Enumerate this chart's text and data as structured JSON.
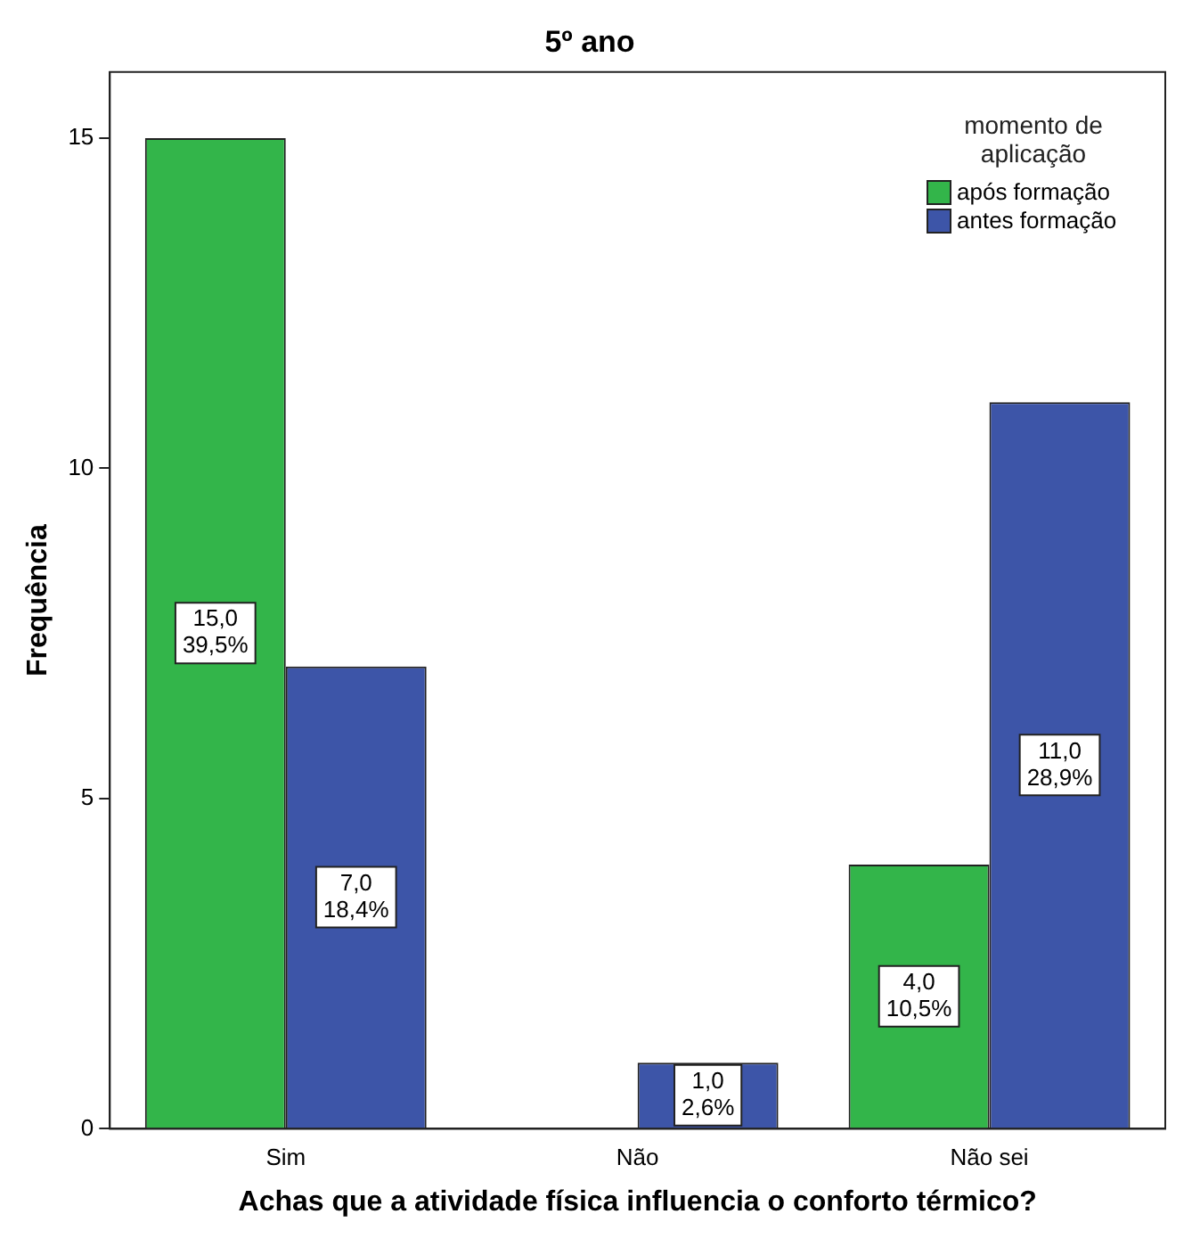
{
  "chart_data": {
    "type": "bar",
    "title": "5º ano",
    "xlabel": "Achas que a atividade física influencia o conforto térmico?",
    "ylabel": "Frequência",
    "legend_title": "momento de aplicação",
    "categories": [
      "Sim",
      "Não",
      "Não sei"
    ],
    "series": [
      {
        "name": "após formação",
        "color": "#33b54a",
        "values": [
          15,
          null,
          4
        ],
        "value_labels": [
          "15,0\n39,5%",
          null,
          "4,0\n10,5%"
        ]
      },
      {
        "name": "antes formação",
        "color": "#3d55a8",
        "values": [
          7,
          1,
          11
        ],
        "value_labels": [
          "7,0\n18,4%",
          "1,0\n2,6%",
          "11,0\n28,9%"
        ]
      }
    ],
    "ylim": [
      0,
      16
    ],
    "yticks": [
      0,
      5,
      10,
      15
    ],
    "grid": false,
    "legend": "top right"
  }
}
